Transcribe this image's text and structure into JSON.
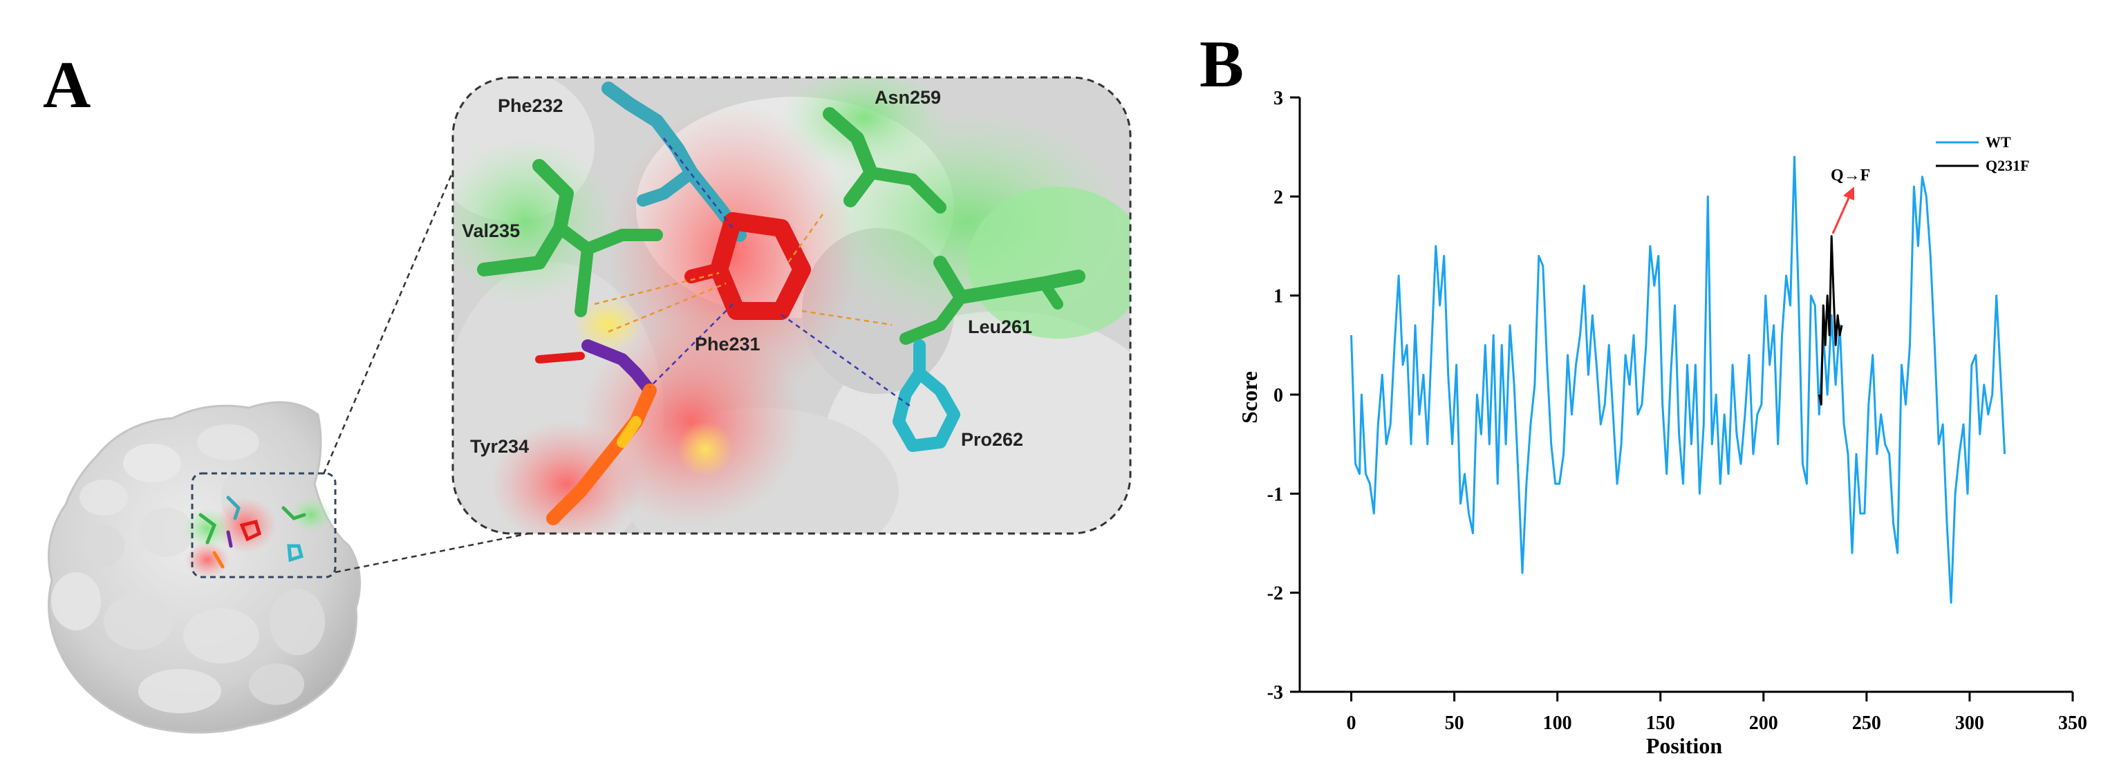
{
  "panel_a": {
    "letter": "A",
    "residues": [
      "Phe232",
      "Asn259",
      "Val235",
      "Phe231",
      "Leu261",
      "Tyr234",
      "Pro262"
    ]
  },
  "panel_b": {
    "letter": "B"
  },
  "chart_data": {
    "type": "line",
    "xlabel": "Position",
    "ylabel": "Score",
    "xlim": [
      -25,
      350
    ],
    "ylim": [
      -3,
      3
    ],
    "xticks": [
      0,
      50,
      100,
      150,
      200,
      250,
      300,
      350
    ],
    "yticks": [
      -3,
      -2,
      -1,
      0,
      1,
      2,
      3
    ],
    "legend_position": "top-right",
    "annotation": {
      "text": "Q→F",
      "x": 234,
      "y": 1.6
    },
    "series": [
      {
        "name": "WT",
        "color": "#1aa3f0",
        "points": [
          [
            0,
            0.6
          ],
          [
            2,
            -0.7
          ],
          [
            4,
            -0.8
          ],
          [
            5,
            0.0
          ],
          [
            7,
            -0.8
          ],
          [
            9,
            -0.9
          ],
          [
            11,
            -1.2
          ],
          [
            13,
            -0.3
          ],
          [
            15,
            0.2
          ],
          [
            17,
            -0.5
          ],
          [
            19,
            -0.3
          ],
          [
            21,
            0.5
          ],
          [
            23,
            1.2
          ],
          [
            25,
            0.3
          ],
          [
            27,
            0.5
          ],
          [
            29,
            -0.5
          ],
          [
            31,
            0.7
          ],
          [
            33,
            -0.2
          ],
          [
            35,
            0.2
          ],
          [
            37,
            -0.5
          ],
          [
            39,
            0.5
          ],
          [
            41,
            1.5
          ],
          [
            43,
            0.9
          ],
          [
            45,
            1.4
          ],
          [
            47,
            0.2
          ],
          [
            49,
            -0.5
          ],
          [
            51,
            0.3
          ],
          [
            53,
            -1.1
          ],
          [
            55,
            -0.8
          ],
          [
            57,
            -1.2
          ],
          [
            59,
            -1.4
          ],
          [
            61,
            0.0
          ],
          [
            63,
            -0.4
          ],
          [
            65,
            0.5
          ],
          [
            67,
            -0.5
          ],
          [
            69,
            0.6
          ],
          [
            71,
            -0.9
          ],
          [
            73,
            0.5
          ],
          [
            75,
            -0.5
          ],
          [
            77,
            0.7
          ],
          [
            79,
            0.1
          ],
          [
            81,
            -0.8
          ],
          [
            83,
            -1.8
          ],
          [
            85,
            -0.9
          ],
          [
            87,
            -0.3
          ],
          [
            89,
            0.1
          ],
          [
            91,
            1.4
          ],
          [
            93,
            1.3
          ],
          [
            95,
            0.3
          ],
          [
            97,
            -0.5
          ],
          [
            99,
            -0.9
          ],
          [
            101,
            -0.9
          ],
          [
            103,
            -0.6
          ],
          [
            105,
            0.4
          ],
          [
            107,
            -0.2
          ],
          [
            109,
            0.3
          ],
          [
            111,
            0.6
          ],
          [
            113,
            1.1
          ],
          [
            115,
            0.2
          ],
          [
            117,
            0.8
          ],
          [
            119,
            0.3
          ],
          [
            121,
            -0.3
          ],
          [
            123,
            -0.1
          ],
          [
            125,
            0.5
          ],
          [
            127,
            -0.2
          ],
          [
            129,
            -0.9
          ],
          [
            131,
            -0.5
          ],
          [
            133,
            0.4
          ],
          [
            135,
            0.1
          ],
          [
            137,
            0.6
          ],
          [
            139,
            -0.2
          ],
          [
            141,
            -0.1
          ],
          [
            143,
            0.5
          ],
          [
            145,
            1.5
          ],
          [
            147,
            1.1
          ],
          [
            149,
            1.4
          ],
          [
            151,
            -0.1
          ],
          [
            153,
            -0.8
          ],
          [
            155,
            0.2
          ],
          [
            157,
            0.9
          ],
          [
            159,
            -0.4
          ],
          [
            161,
            -0.9
          ],
          [
            163,
            0.3
          ],
          [
            165,
            -0.5
          ],
          [
            167,
            0.3
          ],
          [
            169,
            -1.0
          ],
          [
            171,
            -0.3
          ],
          [
            173,
            2.0
          ],
          [
            175,
            -0.5
          ],
          [
            177,
            0.0
          ],
          [
            179,
            -0.9
          ],
          [
            181,
            -0.2
          ],
          [
            183,
            -0.8
          ],
          [
            185,
            0.3
          ],
          [
            187,
            -0.4
          ],
          [
            189,
            -0.7
          ],
          [
            191,
            -0.2
          ],
          [
            193,
            0.4
          ],
          [
            195,
            -0.6
          ],
          [
            197,
            -0.2
          ],
          [
            199,
            -0.1
          ],
          [
            201,
            1.0
          ],
          [
            203,
            0.3
          ],
          [
            205,
            0.7
          ],
          [
            207,
            -0.5
          ],
          [
            209,
            0.6
          ],
          [
            211,
            1.2
          ],
          [
            213,
            0.9
          ],
          [
            215,
            2.4
          ],
          [
            217,
            1.0
          ],
          [
            219,
            -0.7
          ],
          [
            221,
            -0.9
          ],
          [
            223,
            1.0
          ],
          [
            225,
            0.9
          ],
          [
            227,
            -0.2
          ],
          [
            229,
            0.6
          ],
          [
            231,
            0.0
          ],
          [
            233,
            0.8
          ],
          [
            235,
            0.1
          ],
          [
            237,
            0.7
          ],
          [
            239,
            -0.3
          ],
          [
            241,
            -0.6
          ],
          [
            243,
            -1.6
          ],
          [
            245,
            -0.6
          ],
          [
            247,
            -1.2
          ],
          [
            249,
            -1.2
          ],
          [
            251,
            -0.1
          ],
          [
            253,
            0.4
          ],
          [
            255,
            -0.6
          ],
          [
            257,
            -0.2
          ],
          [
            259,
            -0.5
          ],
          [
            261,
            -0.6
          ],
          [
            263,
            -1.3
          ],
          [
            265,
            -1.6
          ],
          [
            267,
            0.3
          ],
          [
            269,
            -0.1
          ],
          [
            271,
            0.5
          ],
          [
            273,
            2.1
          ],
          [
            275,
            1.5
          ],
          [
            277,
            2.2
          ],
          [
            279,
            2.0
          ],
          [
            281,
            1.4
          ],
          [
            283,
            0.5
          ],
          [
            285,
            -0.5
          ],
          [
            287,
            -0.3
          ],
          [
            289,
            -1.3
          ],
          [
            291,
            -2.1
          ],
          [
            293,
            -1.0
          ],
          [
            295,
            -0.6
          ],
          [
            297,
            -0.3
          ],
          [
            299,
            -1.0
          ],
          [
            301,
            0.3
          ],
          [
            303,
            0.4
          ],
          [
            305,
            -0.4
          ],
          [
            307,
            0.1
          ],
          [
            309,
            -0.2
          ],
          [
            311,
            0.0
          ],
          [
            313,
            1.0
          ],
          [
            315,
            0.2
          ],
          [
            317,
            -0.6
          ]
        ]
      },
      {
        "name": "Q231F",
        "color": "#000000",
        "points": [
          [
            227,
            0.0
          ],
          [
            228,
            -0.1
          ],
          [
            229,
            0.9
          ],
          [
            230,
            0.5
          ],
          [
            231,
            1.0
          ],
          [
            232,
            0.6
          ],
          [
            233,
            1.6
          ],
          [
            234,
            1.0
          ],
          [
            235,
            0.5
          ],
          [
            236,
            0.8
          ],
          [
            237,
            0.6
          ],
          [
            238,
            0.7
          ]
        ]
      }
    ]
  }
}
